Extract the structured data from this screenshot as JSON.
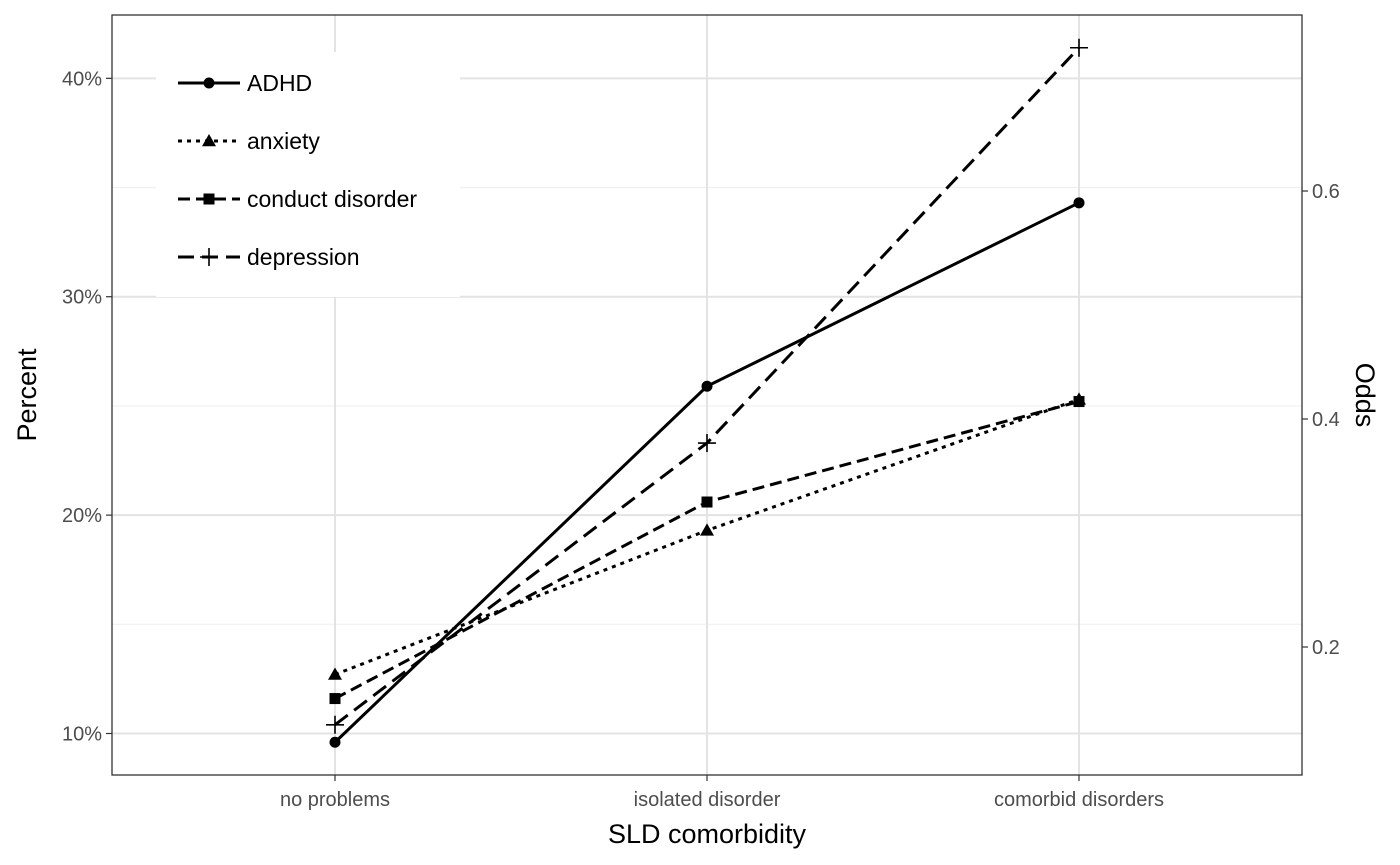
{
  "chart_data": {
    "type": "line",
    "xlabel": "SLD comorbidity",
    "ylabel": "Percent",
    "y2label": "Odds",
    "categories": [
      "no problems",
      "isolated disorder",
      "comorbid disorders"
    ],
    "ylim": [
      8.1,
      42.9
    ],
    "yticks": [
      10,
      20,
      30,
      40
    ],
    "ytick_labels": [
      "10%",
      "20%",
      "30%",
      "40%"
    ],
    "y2ticks": [
      0.2,
      0.4,
      0.6
    ],
    "y2tick_labels": [
      "0.2",
      "0.4",
      "0.6"
    ],
    "grid": true,
    "legend_position": "top-left",
    "series": [
      {
        "name": "ADHD",
        "values": [
          9.6,
          25.9,
          34.3
        ],
        "dash": "",
        "marker": "circle"
      },
      {
        "name": "anxiety",
        "values": [
          12.7,
          19.3,
          25.3
        ],
        "dash": "4 5",
        "marker": "triangle"
      },
      {
        "name": "conduct disorder",
        "values": [
          11.6,
          20.6,
          25.2
        ],
        "dash": "12 6",
        "marker": "square"
      },
      {
        "name": "depression",
        "values": [
          10.4,
          23.3,
          41.4
        ],
        "dash": "16 8",
        "marker": "plus"
      }
    ]
  }
}
